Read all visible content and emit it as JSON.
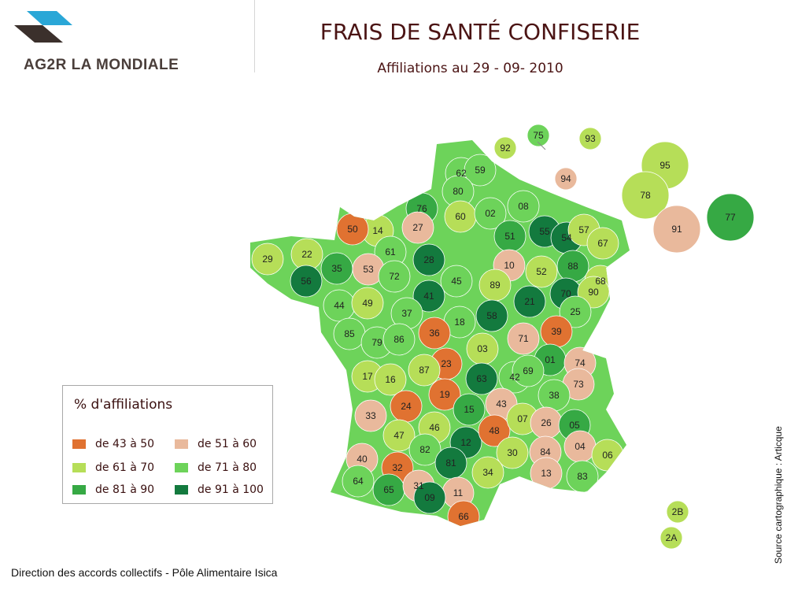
{
  "header": {
    "logo_text": "AG2R LA MONDIALE",
    "title": "FRAIS DE SANTÉ CONFISERIE",
    "subtitle": "Affiliations au 29 - 09- 2010"
  },
  "colors": {
    "c1": "#e07231",
    "c2": "#e9b99c",
    "c3": "#b6de58",
    "c4": "#6dd35a",
    "c5": "#36a944",
    "c6": "#137a3e",
    "logo_blue": "#2aa7d7",
    "logo_dark": "#3b302c"
  },
  "legend": {
    "title": "% d'affiliations",
    "items": [
      {
        "label": "de 43 à 50",
        "color": "c1"
      },
      {
        "label": "de 51 à 60",
        "color": "c2"
      },
      {
        "label": "de 61 à 70",
        "color": "c3"
      },
      {
        "label": "de 71 à 80",
        "color": "c4"
      },
      {
        "label": "de 81 à 90",
        "color": "c5"
      },
      {
        "label": "de 91 à 100",
        "color": "c6"
      }
    ]
  },
  "departments": [
    {
      "code": "62",
      "cls": "c4"
    },
    {
      "code": "59",
      "cls": "c4"
    },
    {
      "code": "80",
      "cls": "c4"
    },
    {
      "code": "76",
      "cls": "c5"
    },
    {
      "code": "60",
      "cls": "c3"
    },
    {
      "code": "02",
      "cls": "c4"
    },
    {
      "code": "08",
      "cls": "c4"
    },
    {
      "code": "27",
      "cls": "c2"
    },
    {
      "code": "14",
      "cls": "c3"
    },
    {
      "code": "50",
      "cls": "c1"
    },
    {
      "code": "61",
      "cls": "c4"
    },
    {
      "code": "28",
      "cls": "c6"
    },
    {
      "code": "51",
      "cls": "c5"
    },
    {
      "code": "55",
      "cls": "c6"
    },
    {
      "code": "54",
      "cls": "c6"
    },
    {
      "code": "57",
      "cls": "c3"
    },
    {
      "code": "67",
      "cls": "c3"
    },
    {
      "code": "29",
      "cls": "c3"
    },
    {
      "code": "22",
      "cls": "c3"
    },
    {
      "code": "35",
      "cls": "c5"
    },
    {
      "code": "56",
      "cls": "c6"
    },
    {
      "code": "53",
      "cls": "c2"
    },
    {
      "code": "72",
      "cls": "c4"
    },
    {
      "code": "10",
      "cls": "c2"
    },
    {
      "code": "52",
      "cls": "c3"
    },
    {
      "code": "88",
      "cls": "c5"
    },
    {
      "code": "68",
      "cls": "c3"
    },
    {
      "code": "45",
      "cls": "c4"
    },
    {
      "code": "89",
      "cls": "c3"
    },
    {
      "code": "44",
      "cls": "c4"
    },
    {
      "code": "49",
      "cls": "c3"
    },
    {
      "code": "41",
      "cls": "c6"
    },
    {
      "code": "21",
      "cls": "c6"
    },
    {
      "code": "70",
      "cls": "c6"
    },
    {
      "code": "90",
      "cls": "c3"
    },
    {
      "code": "37",
      "cls": "c4"
    },
    {
      "code": "18",
      "cls": "c4"
    },
    {
      "code": "58",
      "cls": "c6"
    },
    {
      "code": "25",
      "cls": "c4"
    },
    {
      "code": "85",
      "cls": "c4"
    },
    {
      "code": "79",
      "cls": "c4"
    },
    {
      "code": "86",
      "cls": "c4"
    },
    {
      "code": "36",
      "cls": "c1"
    },
    {
      "code": "71",
      "cls": "c2"
    },
    {
      "code": "39",
      "cls": "c1"
    },
    {
      "code": "03",
      "cls": "c3"
    },
    {
      "code": "23",
      "cls": "c1"
    },
    {
      "code": "01",
      "cls": "c5"
    },
    {
      "code": "74",
      "cls": "c2"
    },
    {
      "code": "17",
      "cls": "c3"
    },
    {
      "code": "16",
      "cls": "c3"
    },
    {
      "code": "87",
      "cls": "c3"
    },
    {
      "code": "63",
      "cls": "c6"
    },
    {
      "code": "42",
      "cls": "c4"
    },
    {
      "code": "69",
      "cls": "c4"
    },
    {
      "code": "73",
      "cls": "c2"
    },
    {
      "code": "24",
      "cls": "c1"
    },
    {
      "code": "19",
      "cls": "c1"
    },
    {
      "code": "15",
      "cls": "c5"
    },
    {
      "code": "43",
      "cls": "c2"
    },
    {
      "code": "38",
      "cls": "c4"
    },
    {
      "code": "33",
      "cls": "c2"
    },
    {
      "code": "47",
      "cls": "c3"
    },
    {
      "code": "46",
      "cls": "c3"
    },
    {
      "code": "12",
      "cls": "c6"
    },
    {
      "code": "48",
      "cls": "c1"
    },
    {
      "code": "07",
      "cls": "c3"
    },
    {
      "code": "26",
      "cls": "c2"
    },
    {
      "code": "05",
      "cls": "c5"
    },
    {
      "code": "40",
      "cls": "c2"
    },
    {
      "code": "82",
      "cls": "c4"
    },
    {
      "code": "81",
      "cls": "c6"
    },
    {
      "code": "30",
      "cls": "c3"
    },
    {
      "code": "84",
      "cls": "c2"
    },
    {
      "code": "04",
      "cls": "c2"
    },
    {
      "code": "06",
      "cls": "c3"
    },
    {
      "code": "32",
      "cls": "c1"
    },
    {
      "code": "34",
      "cls": "c3"
    },
    {
      "code": "13",
      "cls": "c2"
    },
    {
      "code": "83",
      "cls": "c4"
    },
    {
      "code": "64",
      "cls": "c4"
    },
    {
      "code": "65",
      "cls": "c5"
    },
    {
      "code": "31",
      "cls": "c2"
    },
    {
      "code": "11",
      "cls": "c2"
    },
    {
      "code": "09",
      "cls": "c6"
    },
    {
      "code": "66",
      "cls": "c1"
    },
    {
      "code": "2B",
      "cls": "c3"
    },
    {
      "code": "2A",
      "cls": "c3"
    },
    {
      "code": "75",
      "cls": "c4"
    },
    {
      "code": "92",
      "cls": "c3"
    },
    {
      "code": "93",
      "cls": "c3"
    },
    {
      "code": "94",
      "cls": "c2"
    },
    {
      "code": "95",
      "cls": "c3"
    },
    {
      "code": "78",
      "cls": "c3"
    },
    {
      "code": "91",
      "cls": "c2"
    },
    {
      "code": "77",
      "cls": "c5"
    }
  ],
  "footer": {
    "left": "Direction des accords collectifs - Pôle Alimentaire Isica",
    "source": "Source cartographique : Articque"
  }
}
